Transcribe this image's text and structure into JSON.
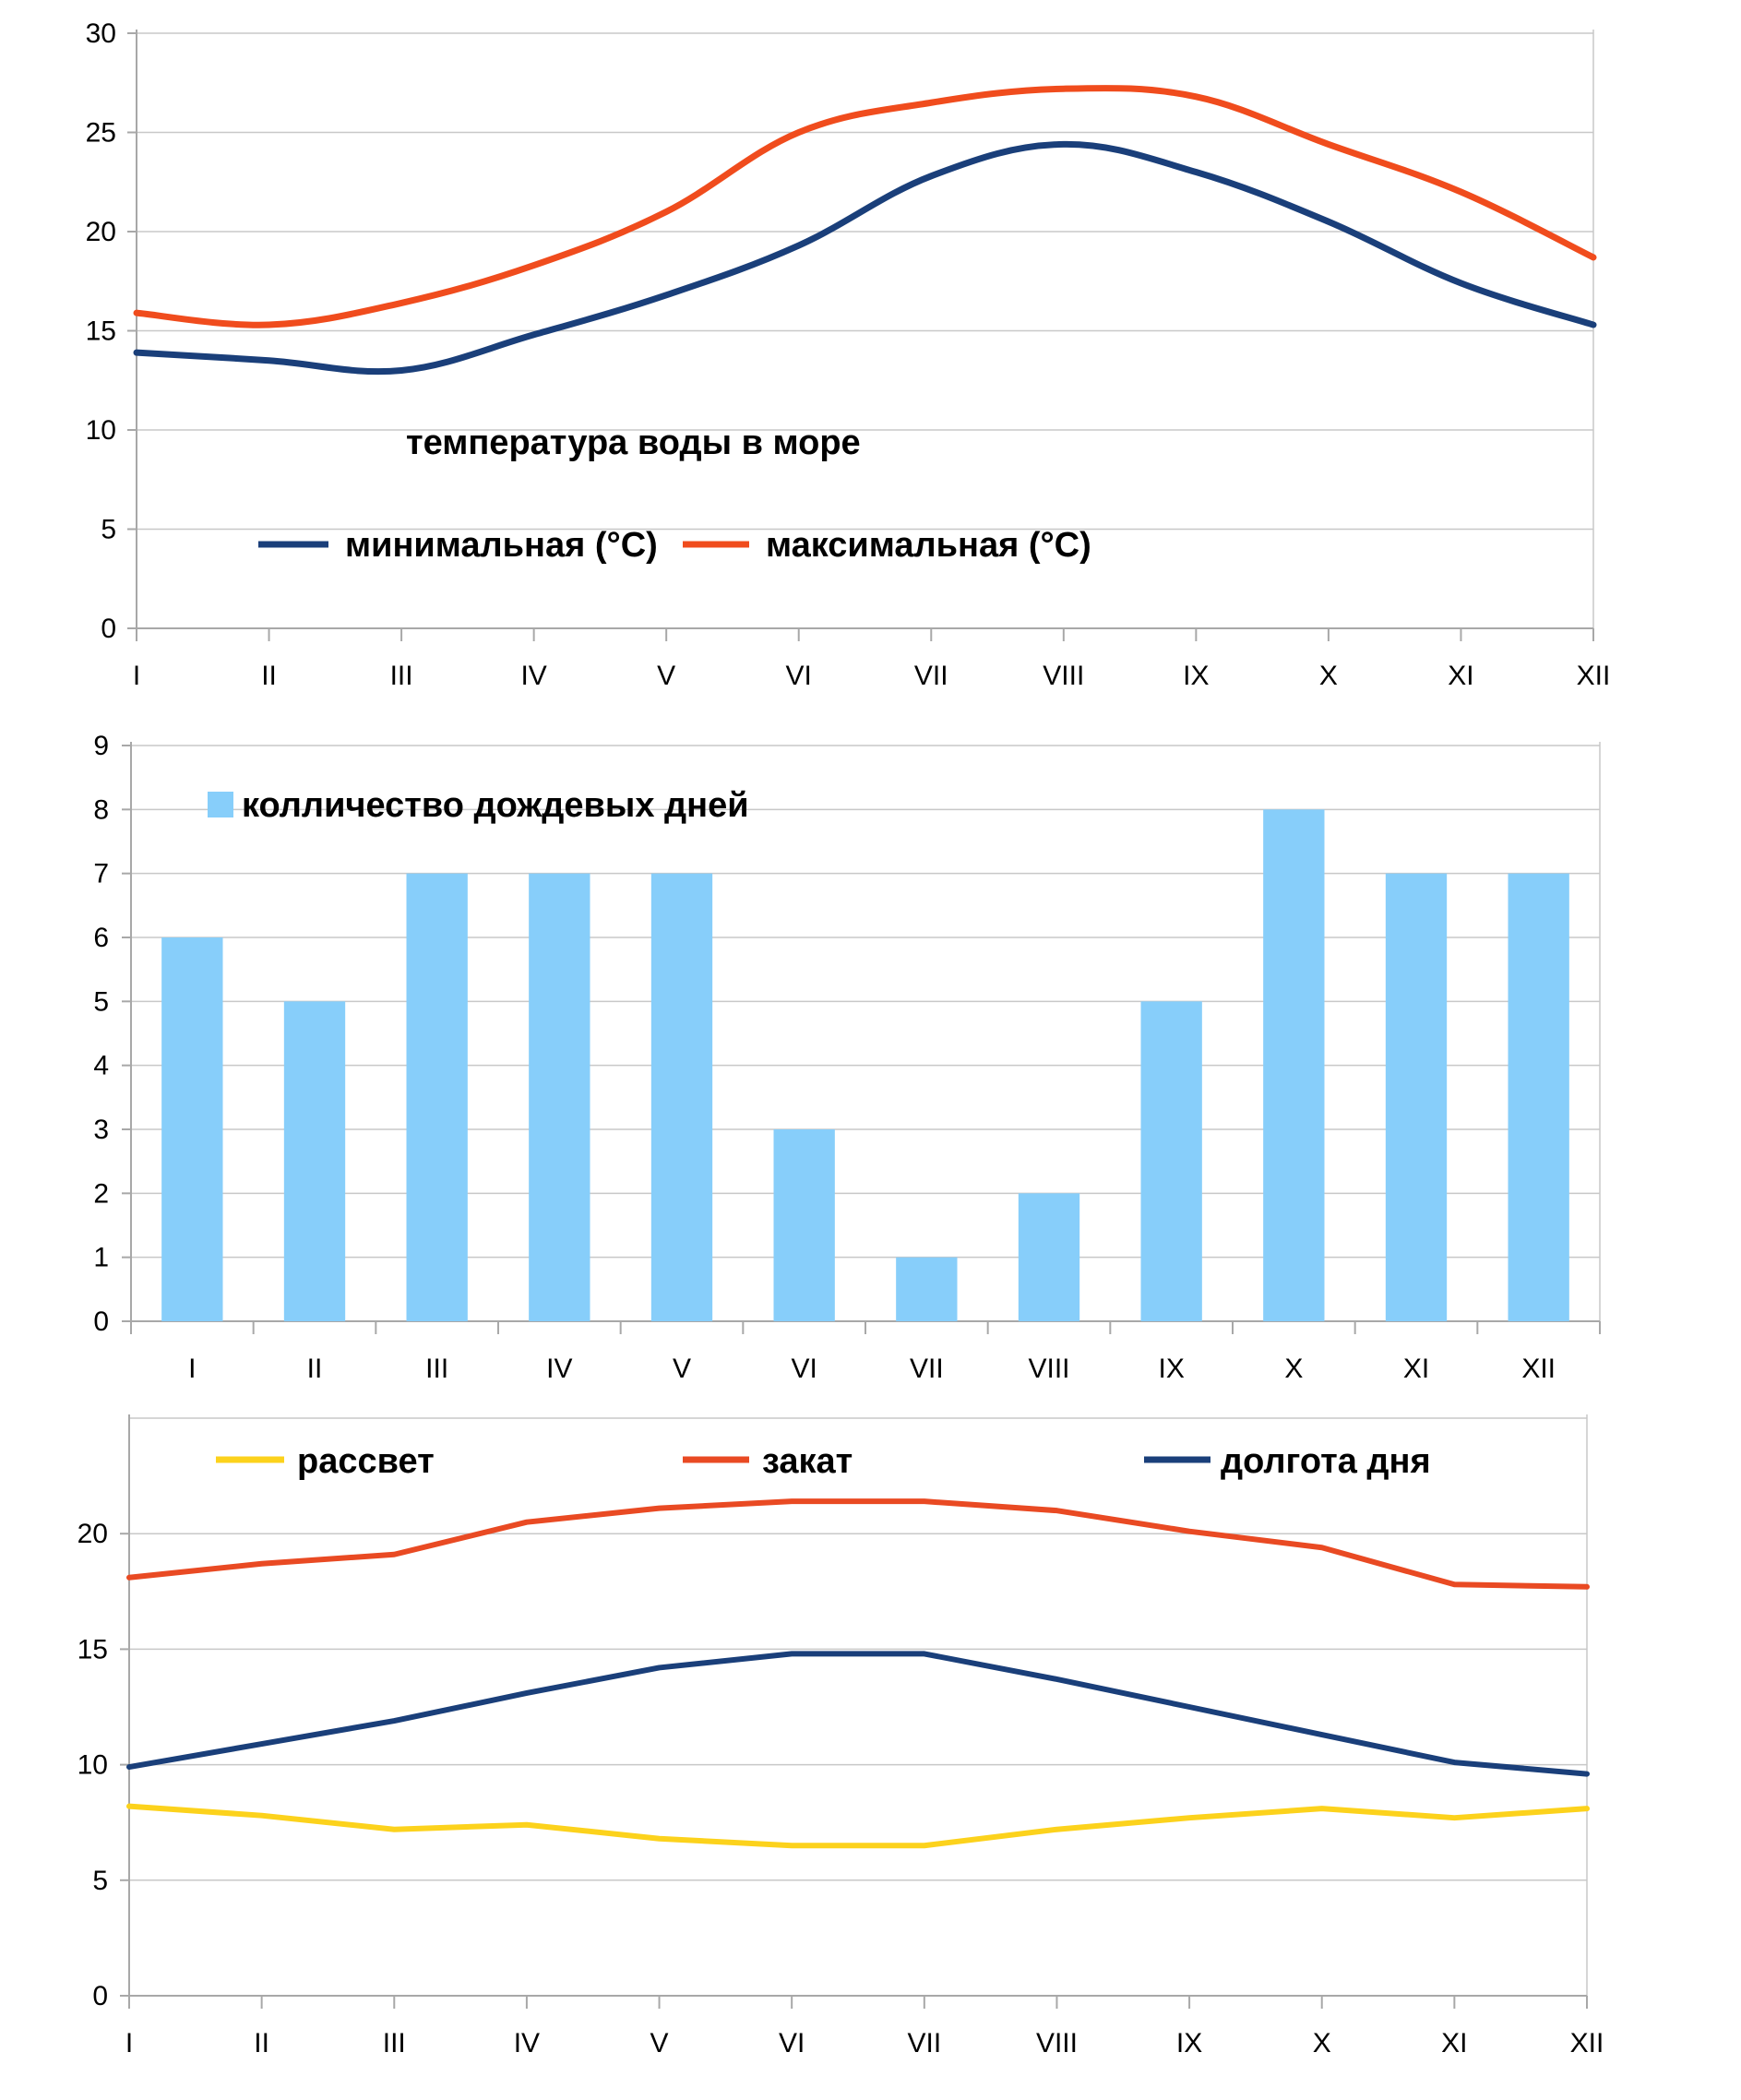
{
  "chart_data": [
    {
      "type": "line",
      "title": "температура воды в море",
      "categories": [
        "I",
        "II",
        "III",
        "IV",
        "V",
        "VI",
        "VII",
        "VIII",
        "IX",
        "X",
        "XI",
        "XII"
      ],
      "ylim": [
        0,
        30
      ],
      "yticks": [
        0,
        5,
        10,
        15,
        20,
        25,
        30
      ],
      "grid": true,
      "series": [
        {
          "name": "минимальная (°C)",
          "color": "#1a3f7a",
          "values": [
            13.9,
            13.5,
            13.0,
            14.8,
            16.8,
            19.3,
            22.8,
            24.4,
            23.0,
            20.5,
            17.4,
            15.3
          ]
        },
        {
          "name": "максимальная (°C)",
          "color": "#f04c1d",
          "values": [
            15.9,
            15.3,
            16.4,
            18.3,
            21.0,
            25.0,
            26.5,
            27.2,
            26.8,
            24.4,
            22.0,
            18.7
          ]
        }
      ]
    },
    {
      "type": "bar",
      "categories": [
        "I",
        "II",
        "III",
        "IV",
        "V",
        "VI",
        "VII",
        "VIII",
        "IX",
        "X",
        "XI",
        "XII"
      ],
      "ylim": [
        0,
        9
      ],
      "yticks": [
        0,
        1,
        2,
        3,
        4,
        5,
        6,
        7,
        8,
        9
      ],
      "grid": true,
      "series": [
        {
          "name": "колличество дождевых дней",
          "color": "#87cefa",
          "values": [
            6,
            5,
            7,
            7,
            7,
            3,
            1,
            2,
            5,
            8,
            7,
            7
          ]
        }
      ]
    },
    {
      "type": "line",
      "categories": [
        "I",
        "II",
        "III",
        "IV",
        "V",
        "VI",
        "VII",
        "VIII",
        "IX",
        "X",
        "XI",
        "XII"
      ],
      "ylim": [
        0,
        25
      ],
      "yticks": [
        0,
        5,
        10,
        15,
        20
      ],
      "grid": true,
      "series": [
        {
          "name": "рассвет",
          "color": "#fcd21c",
          "values": [
            8.2,
            7.8,
            7.2,
            7.4,
            6.8,
            6.5,
            6.5,
            7.2,
            7.7,
            8.1,
            7.7,
            8.1
          ]
        },
        {
          "name": "закат",
          "color": "#e94a23",
          "values": [
            18.1,
            18.7,
            19.1,
            20.5,
            21.1,
            21.4,
            21.4,
            21.0,
            20.1,
            19.4,
            17.8,
            17.7
          ]
        },
        {
          "name": "долгота дня",
          "color": "#1a3f7a",
          "values": [
            9.9,
            10.9,
            11.9,
            13.1,
            14.2,
            14.8,
            14.8,
            13.7,
            12.5,
            11.3,
            10.1,
            9.6
          ]
        }
      ]
    }
  ]
}
